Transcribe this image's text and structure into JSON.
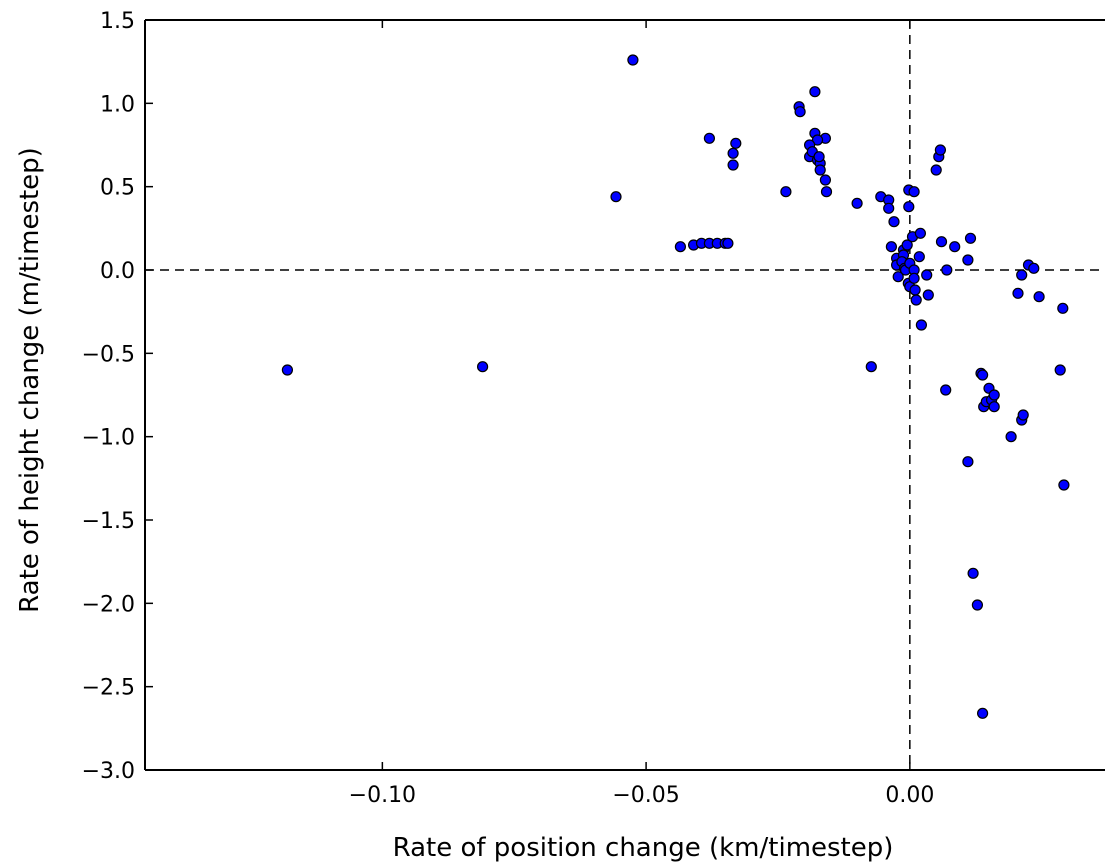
{
  "chart_data": {
    "type": "scatter",
    "xlabel": "Rate of position change (km/timestep)",
    "ylabel": "Rate of height change (m/timestep)",
    "xlim": [
      -0.145,
      0.037
    ],
    "ylim": [
      -3.0,
      1.5
    ],
    "x_ticks": [
      -0.1,
      -0.05,
      0.0
    ],
    "x_tick_labels": [
      "−0.10",
      "−0.05",
      "0.00"
    ],
    "y_ticks": [
      1.5,
      1.0,
      0.5,
      0.0,
      -0.5,
      -1.0,
      -1.5,
      -2.0,
      -2.5,
      -3.0
    ],
    "y_tick_labels": [
      "1.5",
      "1.0",
      "0.5",
      "0.0",
      "−0.5",
      "−1.0",
      "−1.5",
      "−2.0",
      "−2.5",
      "−3.0"
    ],
    "reference_lines": {
      "x": 0.0,
      "y": 0.0,
      "style": "dashed"
    },
    "grid": false,
    "legend": "none",
    "marker_color": "#0000ff",
    "marker_edge_color": "#000000",
    "points": [
      [
        -0.118,
        -0.6
      ],
      [
        -0.081,
        -0.58
      ],
      [
        -0.0557,
        0.44
      ],
      [
        -0.0525,
        1.26
      ],
      [
        -0.0435,
        0.14
      ],
      [
        -0.041,
        0.15
      ],
      [
        -0.0395,
        0.16
      ],
      [
        -0.038,
        0.16
      ],
      [
        -0.0365,
        0.16
      ],
      [
        -0.035,
        0.16
      ],
      [
        -0.0345,
        0.16
      ],
      [
        -0.038,
        0.79
      ],
      [
        -0.033,
        0.76
      ],
      [
        -0.0335,
        0.7
      ],
      [
        -0.0335,
        0.63
      ],
      [
        -0.0235,
        0.47
      ],
      [
        -0.021,
        0.98
      ],
      [
        -0.0208,
        0.95
      ],
      [
        -0.018,
        1.07
      ],
      [
        -0.018,
        0.82
      ],
      [
        -0.016,
        0.79
      ],
      [
        -0.0175,
        0.78
      ],
      [
        -0.019,
        0.75
      ],
      [
        -0.0185,
        0.7
      ],
      [
        -0.019,
        0.68
      ],
      [
        -0.0175,
        0.66
      ],
      [
        -0.017,
        0.64
      ],
      [
        -0.0185,
        0.71
      ],
      [
        -0.0172,
        0.68
      ],
      [
        -0.017,
        0.6
      ],
      [
        -0.016,
        0.54
      ],
      [
        -0.0158,
        0.47
      ],
      [
        -0.01,
        0.4
      ],
      [
        -0.0073,
        -0.58
      ],
      [
        -0.0055,
        0.44
      ],
      [
        -0.004,
        0.42
      ],
      [
        -0.004,
        0.37
      ],
      [
        -0.003,
        0.29
      ],
      [
        -0.0035,
        0.14
      ],
      [
        -0.0025,
        0.07
      ],
      [
        -0.0025,
        0.03
      ],
      [
        -0.0022,
        -0.04
      ],
      [
        -0.0012,
        0.12
      ],
      [
        -0.0012,
        0.09
      ],
      [
        -0.0015,
        0.05
      ],
      [
        -0.001,
        0.01
      ],
      [
        -0.0008,
        0.0
      ],
      [
        -0.0005,
        0.15
      ],
      [
        -0.0002,
        0.48
      ],
      [
        -0.0002,
        0.38
      ],
      [
        -0.0003,
        -0.08
      ],
      [
        0.0,
        0.04
      ],
      [
        0.0,
        -0.1
      ],
      [
        0.0005,
        0.2
      ],
      [
        0.0008,
        0.47
      ],
      [
        0.0008,
        0.0
      ],
      [
        0.0008,
        -0.05
      ],
      [
        0.001,
        -0.12
      ],
      [
        0.0012,
        -0.18
      ],
      [
        0.0018,
        0.08
      ],
      [
        0.002,
        0.22
      ],
      [
        0.0022,
        -0.33
      ],
      [
        0.0032,
        -0.03
      ],
      [
        0.0035,
        -0.15
      ],
      [
        0.005,
        0.6
      ],
      [
        0.0055,
        0.68
      ],
      [
        0.0058,
        0.72
      ],
      [
        0.006,
        0.17
      ],
      [
        0.0068,
        -0.72
      ],
      [
        0.007,
        0.0
      ],
      [
        0.0085,
        0.14
      ],
      [
        0.011,
        0.06
      ],
      [
        0.011,
        -1.15
      ],
      [
        0.0115,
        0.19
      ],
      [
        0.012,
        -1.82
      ],
      [
        0.0128,
        -2.01
      ],
      [
        0.0135,
        -0.62
      ],
      [
        0.0138,
        -0.63
      ],
      [
        0.0138,
        -2.66
      ],
      [
        0.014,
        -0.82
      ],
      [
        0.0145,
        -0.79
      ],
      [
        0.015,
        -0.71
      ],
      [
        0.0155,
        -0.78
      ],
      [
        0.016,
        -0.82
      ],
      [
        0.016,
        -0.75
      ],
      [
        0.0192,
        -1.0
      ],
      [
        0.0205,
        -0.14
      ],
      [
        0.0212,
        -0.03
      ],
      [
        0.0212,
        -0.9
      ],
      [
        0.0215,
        -0.87
      ],
      [
        0.0225,
        0.03
      ],
      [
        0.0235,
        0.01
      ],
      [
        0.0245,
        -0.16
      ],
      [
        0.0285,
        -0.6
      ],
      [
        0.029,
        -0.23
      ],
      [
        0.0292,
        -1.29
      ]
    ]
  }
}
